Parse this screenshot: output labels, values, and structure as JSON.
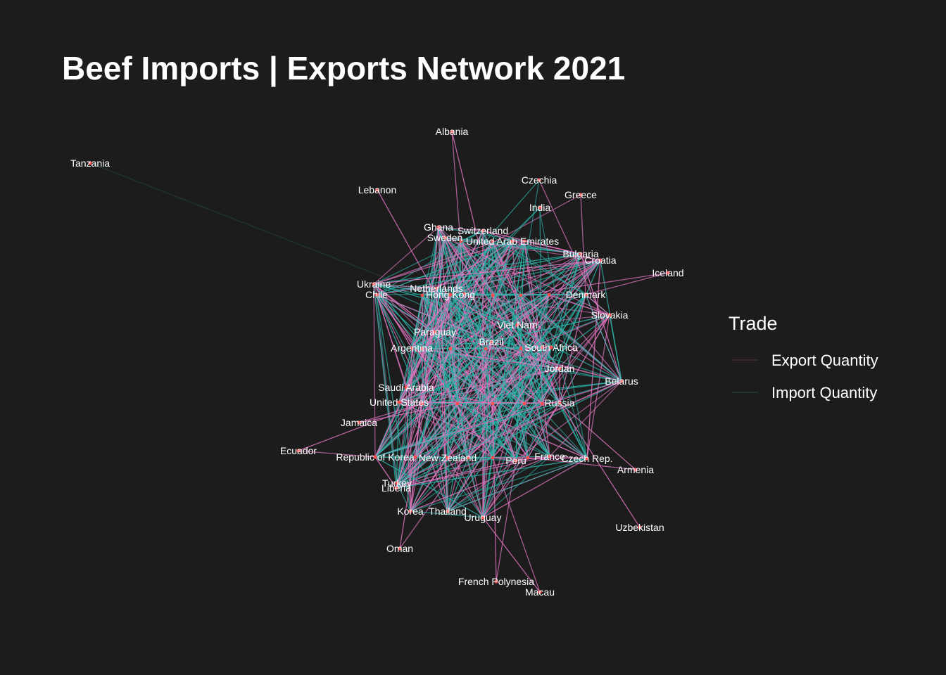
{
  "title": "Beef Imports | Exports Network 2021",
  "legend": {
    "title": "Trade",
    "items": [
      {
        "label": "Export Quantity",
        "color": "#e377c2"
      },
      {
        "label": "Import Quantity",
        "color": "#2bb3a8"
      }
    ]
  },
  "colors": {
    "background": "#1c1c1c",
    "node": "#ff4d4d",
    "label": "#ffffff",
    "export_edge": "#e377c2",
    "import_edge": "#2bb3a8"
  },
  "nodes": [
    {
      "name": "Tanzania"
    },
    {
      "name": "Albania"
    },
    {
      "name": "Lebanon"
    },
    {
      "name": "Czechia"
    },
    {
      "name": "Greece"
    },
    {
      "name": "India"
    },
    {
      "name": "Ghana"
    },
    {
      "name": "Switzerland"
    },
    {
      "name": "Sweden"
    },
    {
      "name": "United Arab Emirates"
    },
    {
      "name": "Bulgaria"
    },
    {
      "name": "Croatia"
    },
    {
      "name": "Iceland"
    },
    {
      "name": "Ukraine"
    },
    {
      "name": "Chile"
    },
    {
      "name": "Netherlands"
    },
    {
      "name": "Hong Kong"
    },
    {
      "name": "Denmark"
    },
    {
      "name": "Slovakia"
    },
    {
      "name": "Paraguay"
    },
    {
      "name": "Viet Nam"
    },
    {
      "name": "Brazil"
    },
    {
      "name": "Argentina"
    },
    {
      "name": "Saudi Arabia"
    },
    {
      "name": "South Africa"
    },
    {
      "name": "Jordan"
    },
    {
      "name": "Belarus"
    },
    {
      "name": "United States"
    },
    {
      "name": "Russia"
    },
    {
      "name": "Jamaica"
    },
    {
      "name": "Ecuador"
    },
    {
      "name": "Republic of Korea"
    },
    {
      "name": "New Zealand"
    },
    {
      "name": "Peru"
    },
    {
      "name": "France"
    },
    {
      "name": "Czech Rep."
    },
    {
      "name": "Armenia"
    },
    {
      "name": "Turkey"
    },
    {
      "name": "Liberia"
    },
    {
      "name": "Korea"
    },
    {
      "name": "Thailand"
    },
    {
      "name": "Uruguay"
    },
    {
      "name": "Uzbekistan"
    },
    {
      "name": "Oman"
    },
    {
      "name": "French Polynesia"
    },
    {
      "name": "Macau"
    }
  ]
}
